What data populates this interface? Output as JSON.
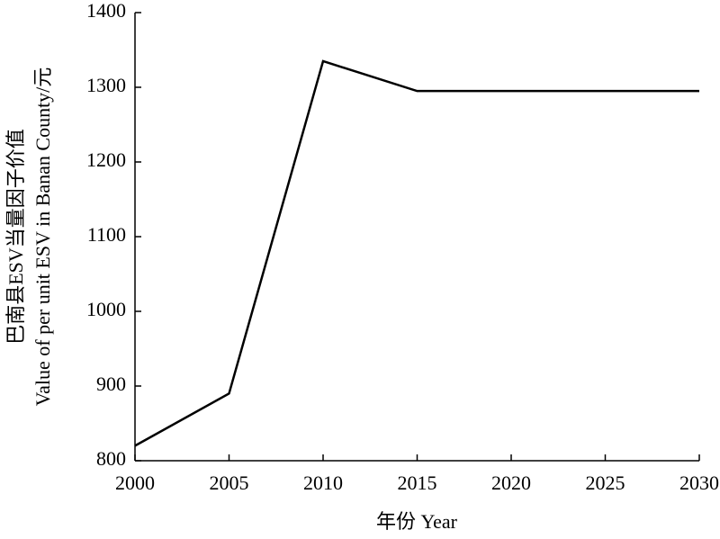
{
  "chart_data": {
    "type": "line",
    "x_label": "年份 Year",
    "y_label": [
      "巴南县ESV当量因子价值",
      "Value of per unit ESV in Banan County/元"
    ],
    "x": [
      2000,
      2005,
      2010,
      2015,
      2020,
      2025,
      2030
    ],
    "values": [
      820,
      890,
      1335,
      1295,
      1295,
      1295,
      1295
    ],
    "color": "#000000",
    "xlim": [
      2000,
      2030
    ],
    "xticks": [
      2000,
      2005,
      2010,
      2015,
      2020,
      2025,
      2030
    ],
    "ylim": [
      800,
      1400
    ],
    "yticks": [
      800,
      900,
      1000,
      1100,
      1200,
      1300,
      1400
    ],
    "grid": false
  }
}
